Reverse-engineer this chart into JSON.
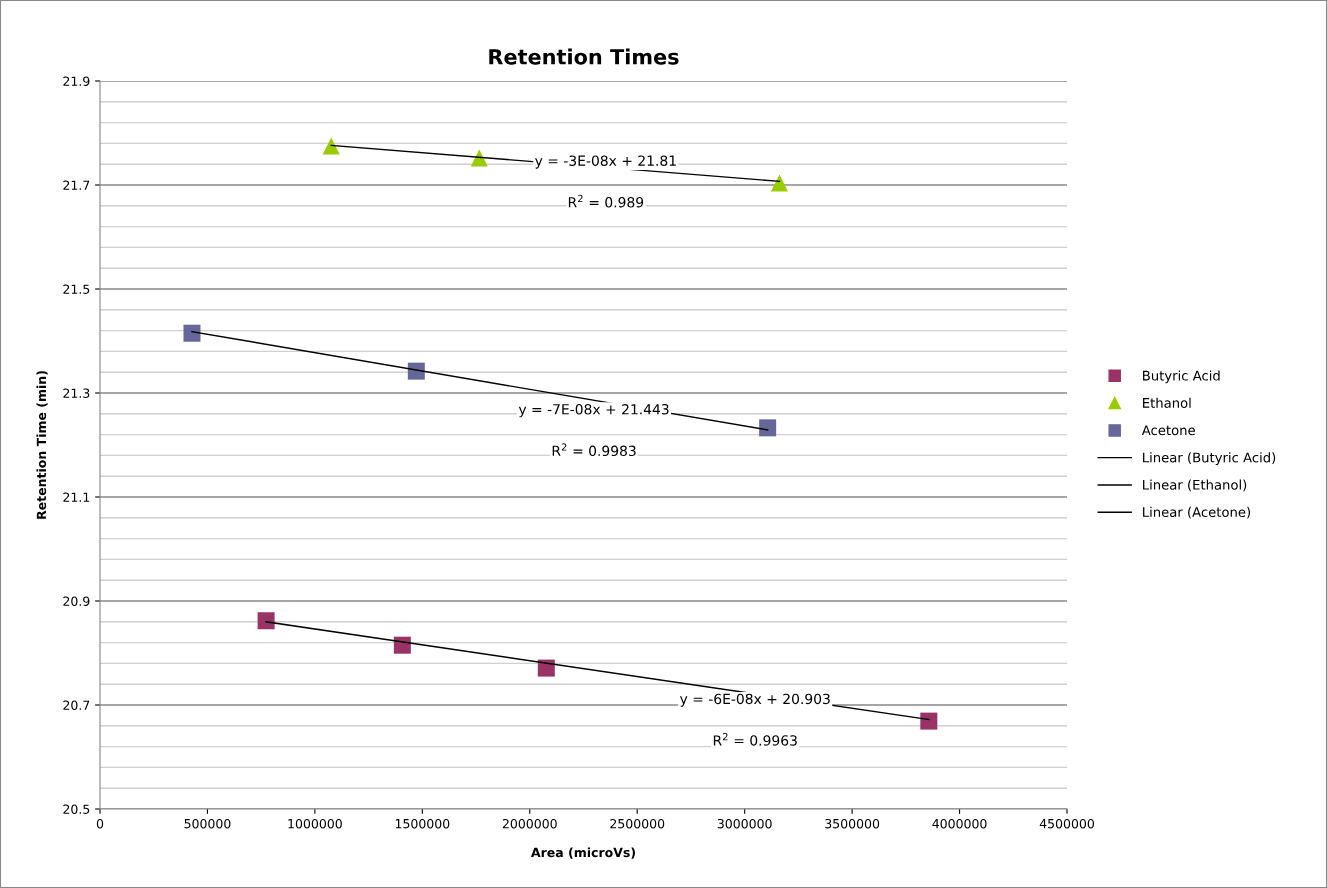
{
  "chart_data": {
    "type": "scatter",
    "title": "Retention Times",
    "xlabel": "Area (microVs)",
    "ylabel": "Retention Time (min)",
    "xlim": [
      0,
      4500000
    ],
    "xticks": [
      0,
      500000,
      1000000,
      1500000,
      2000000,
      2500000,
      3000000,
      3500000,
      4000000,
      4500000
    ],
    "ylim": [
      20.5,
      21.9
    ],
    "yticks": [
      20.5,
      {
        "value": 20.54,
        "label": null
      },
      {
        "value": 20.58,
        "label": null
      },
      {
        "value": 20.62,
        "label": null
      },
      {
        "value": 20.66,
        "label": null
      },
      20.7,
      {
        "value": 20.74,
        "label": null
      },
      {
        "value": 20.78,
        "label": null
      },
      {
        "value": 20.82,
        "label": null
      },
      {
        "value": 20.86,
        "label": null
      },
      20.9,
      {
        "value": 20.94,
        "label": null
      },
      {
        "value": 20.98,
        "label": null
      },
      {
        "value": 21.02,
        "label": null
      },
      {
        "value": 21.06,
        "label": null
      },
      21.1,
      {
        "value": 21.14,
        "label": null
      },
      {
        "value": 21.18,
        "label": null
      },
      {
        "value": 21.22,
        "label": null
      },
      {
        "value": 21.26,
        "label": null
      },
      21.3,
      {
        "value": 21.34,
        "label": null
      },
      {
        "value": 21.38,
        "label": null
      },
      {
        "value": 21.42,
        "label": null
      },
      {
        "value": 21.46,
        "label": null
      },
      21.5,
      {
        "value": 21.54,
        "label": null
      },
      {
        "value": 21.58,
        "label": null
      },
      {
        "value": 21.62,
        "label": null
      },
      {
        "value": 21.66,
        "label": null
      },
      21.7,
      {
        "value": 21.74,
        "label": null
      },
      {
        "value": 21.78,
        "label": null
      },
      {
        "value": 21.82,
        "label": null
      },
      {
        "value": 21.86,
        "label": null
      },
      21.9
    ],
    "grid": "y",
    "legend": "right",
    "series": [
      {
        "name": "Butyric Acid",
        "color": "#993366",
        "marker": "square",
        "x": [
          773000,
          1407000,
          2077000,
          3857000
        ],
        "values": [
          20.862,
          20.815,
          20.771,
          20.669
        ]
      },
      {
        "name": "Ethanol",
        "color": "#99cc00",
        "marker": "triangle",
        "x": [
          1076000,
          1765000,
          3162000
        ],
        "values": [
          21.775,
          21.752,
          21.704
        ]
      },
      {
        "name": "Acetone",
        "color": "#666699",
        "marker": "square",
        "x": [
          428000,
          1472000,
          3107000
        ],
        "values": [
          21.415,
          21.342,
          21.233
        ]
      },
      {
        "name": "Linear (Butyric Acid)",
        "type": "line",
        "color": "#000000",
        "marker": "none",
        "x": [
          773000,
          3857000
        ],
        "values": [
          20.86,
          20.672
        ]
      },
      {
        "name": "Linear (Ethanol)",
        "type": "line",
        "color": "#000000",
        "marker": "none",
        "x": [
          1076000,
          3162000
        ],
        "values": [
          21.776,
          21.707
        ]
      },
      {
        "name": "Linear (Acetone)",
        "type": "line",
        "color": "#000000",
        "marker": "none",
        "x": [
          428000,
          3107000
        ],
        "values": [
          21.418,
          21.229
        ]
      }
    ],
    "annotations": [
      "y = -6E-08x + 20.903",
      "R$^{2}$ = 0.9963",
      "y = -3E-08x + 21.81",
      "R$^{2}$ = 0.989",
      "y = -7E-08x + 21.443",
      "R$^{2}$ = 0.9983"
    ]
  }
}
